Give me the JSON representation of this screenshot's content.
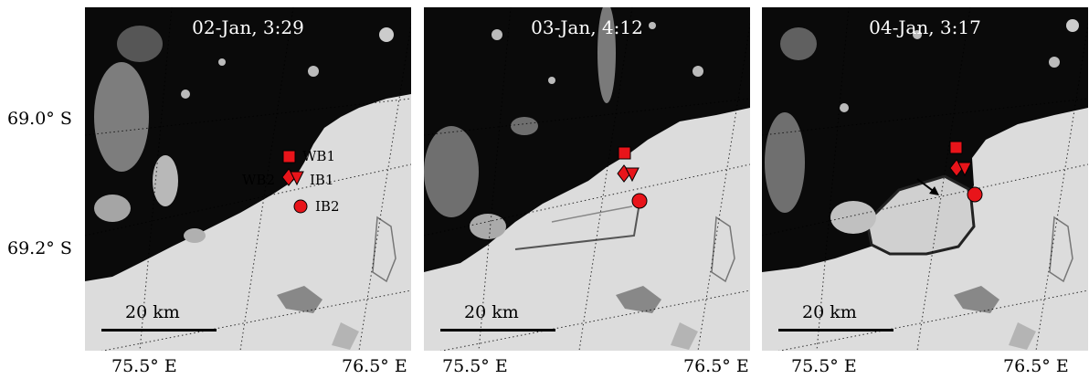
{
  "panels": [
    {
      "title": "02-Jan, 3:29",
      "scale_label": "20 km",
      "has_scale": true,
      "has_labels": true
    },
    {
      "title": "03-Jan, 4:12",
      "scale_label": "20 km",
      "has_scale": true,
      "has_labels": false
    },
    {
      "title": "04-Jan, 3:17",
      "scale_label": "20 km",
      "has_scale": true,
      "has_labels": false,
      "has_arrow": true
    }
  ],
  "site_labels": {
    "wb1": "WB1",
    "wb2": "WB2",
    "ib1": "IB1",
    "ib2": "IB2"
  },
  "lat_labels": [
    "69.0° S",
    "69.2° S"
  ],
  "lon_labels": [
    "75.5° E",
    "76.5° E"
  ],
  "colors": {
    "marker": "#e8141a",
    "ocean": "#0a0a0a",
    "ice": "#dcdcdc"
  }
}
